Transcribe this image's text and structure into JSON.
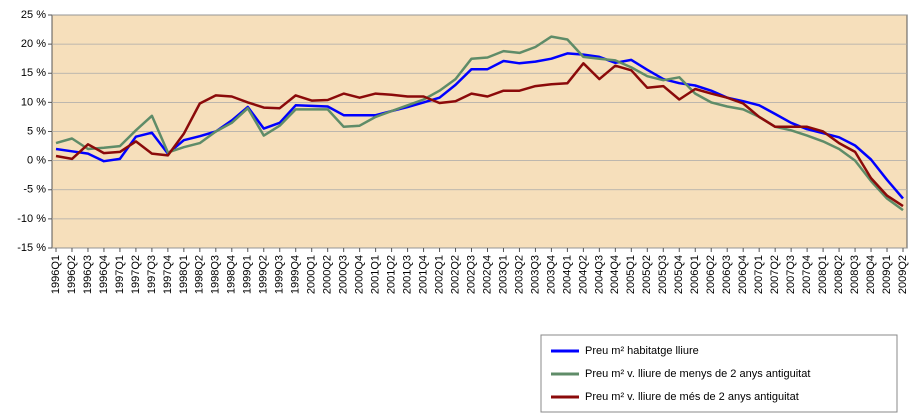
{
  "chart_data": {
    "type": "line",
    "categories": [
      "1996Q1",
      "1996Q2",
      "1996Q3",
      "1996Q4",
      "1997Q1",
      "1997Q2",
      "1997Q3",
      "1997Q4",
      "1998Q1",
      "1998Q2",
      "1998Q3",
      "1998Q4",
      "1999Q1",
      "1999Q2",
      "1999Q3",
      "1999Q4",
      "2000Q1",
      "2000Q2",
      "2000Q3",
      "2000Q4",
      "2001Q1",
      "2001Q2",
      "2001Q3",
      "2001Q4",
      "2002Q1",
      "2002Q2",
      "2002Q3",
      "2002Q4",
      "2003Q1",
      "2003Q2",
      "2003Q3",
      "2003Q4",
      "2004Q1",
      "2004Q2",
      "2004Q3",
      "2004Q4",
      "2005Q1",
      "2005Q2",
      "2005Q3",
      "2005Q4",
      "2006Q1",
      "2006Q2",
      "2006Q3",
      "2006Q4",
      "2007Q1",
      "2007Q2",
      "2007Q3",
      "2007Q4",
      "2008Q1",
      "2008Q2",
      "2008Q3",
      "2008Q4",
      "2009Q1",
      "2009Q2"
    ],
    "series": [
      {
        "name": "Preu m² habitatge lliure",
        "color": "#0000ff",
        "values": [
          2.0,
          1.6,
          1.2,
          -0.1,
          0.3,
          4.1,
          4.8,
          1.2,
          3.5,
          4.2,
          5.0,
          6.9,
          9.2,
          5.5,
          6.5,
          9.5,
          9.4,
          9.3,
          7.8,
          7.8,
          7.8,
          8.5,
          9.2,
          10.0,
          10.8,
          13.0,
          15.7,
          15.7,
          17.1,
          16.7,
          17.0,
          17.5,
          18.4,
          18.2,
          17.8,
          16.8,
          17.3,
          15.6,
          14.0,
          13.3,
          12.9,
          12.0,
          10.8,
          10.2,
          9.5,
          8.0,
          6.5,
          5.4,
          4.7,
          4.0,
          2.6,
          0.2,
          -3.3,
          -6.5
        ]
      },
      {
        "name": "Preu m² v. lliure de menys de 2 anys antiguitat",
        "color": "#5f8c68",
        "values": [
          3.0,
          3.8,
          2.0,
          2.2,
          2.5,
          5.2,
          7.7,
          1.4,
          2.3,
          3.0,
          5.0,
          6.5,
          9.0,
          4.3,
          6.0,
          8.8,
          8.8,
          8.8,
          5.8,
          6.0,
          7.5,
          8.5,
          9.5,
          10.5,
          12.0,
          14.0,
          17.5,
          17.7,
          18.8,
          18.5,
          19.5,
          21.3,
          20.8,
          17.8,
          17.5,
          17.2,
          16.0,
          14.5,
          13.8,
          14.3,
          11.5,
          10.0,
          9.3,
          8.8,
          7.5,
          5.8,
          5.2,
          4.3,
          3.3,
          2.0,
          0.0,
          -3.5,
          -6.5,
          -8.5
        ]
      },
      {
        "name": "Preu m² v. lliure de més de 2 anys antiguitat",
        "color": "#8b0a0a",
        "values": [
          0.8,
          0.3,
          2.8,
          1.3,
          1.5,
          3.3,
          1.2,
          0.9,
          4.6,
          9.8,
          11.2,
          11.0,
          10.0,
          9.1,
          9.0,
          11.2,
          10.3,
          10.4,
          11.5,
          10.8,
          11.5,
          11.3,
          11.0,
          11.0,
          9.9,
          10.2,
          11.5,
          11.0,
          12.0,
          12.0,
          12.8,
          13.1,
          13.3,
          16.7,
          14.0,
          16.3,
          15.5,
          12.5,
          12.8,
          10.5,
          12.3,
          11.5,
          10.8,
          9.8,
          7.5,
          5.8,
          5.8,
          5.8,
          5.0,
          3.0,
          1.5,
          -3.0,
          -6.0,
          -7.8
        ]
      }
    ],
    "ylim": [
      -15,
      25
    ],
    "yticks": [
      {
        "value": -15,
        "label": "-15 %"
      },
      {
        "value": -10,
        "label": "-10 %"
      },
      {
        "value": -5,
        "label": "-5 %"
      },
      {
        "value": 0,
        "label": "0 %"
      },
      {
        "value": 5,
        "label": "5 %"
      },
      {
        "value": 10,
        "label": "10 %"
      },
      {
        "value": 15,
        "label": "15 %"
      },
      {
        "value": 20,
        "label": "20 %"
      },
      {
        "value": 25,
        "label": "25 %"
      }
    ],
    "grid": true,
    "background": "#f6dfbb",
    "legend": "bottom-right"
  }
}
